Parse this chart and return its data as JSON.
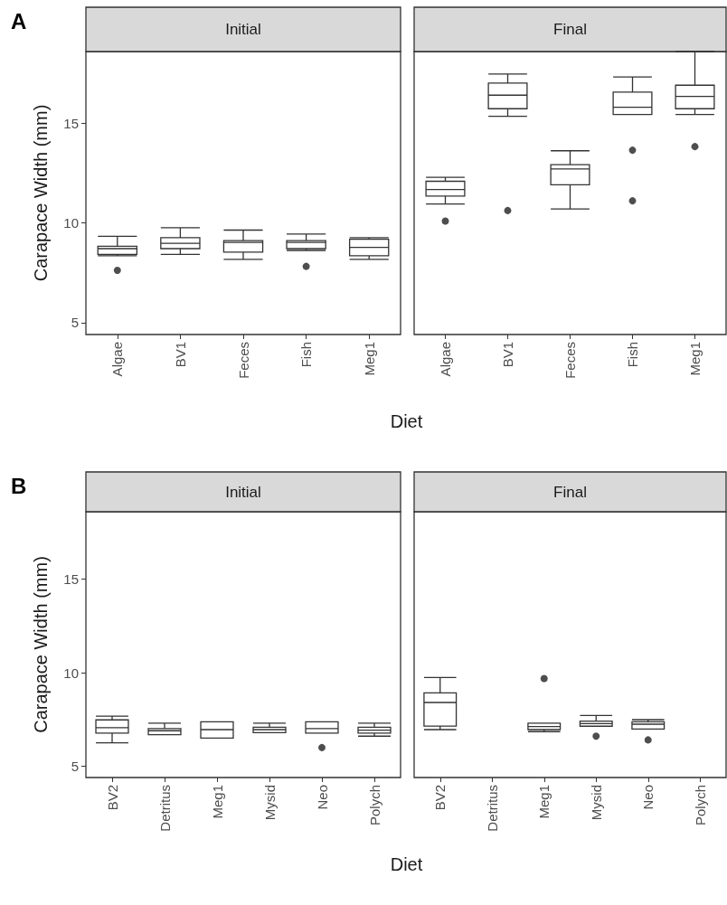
{
  "chart_data": [
    {
      "type": "box",
      "title": "Initial",
      "annotations": [
        "A"
      ],
      "xlabel": "Diet",
      "ylabel": "Carapace Width (mm)",
      "categories": [
        "Algae",
        "BV1",
        "Feces",
        "Fish",
        "Meg1"
      ],
      "ylim": [
        4.4,
        18.6
      ],
      "yticks": [
        5,
        10,
        15
      ],
      "boxes": [
        {
          "low": 8.35,
          "q1": 8.42,
          "median": 8.71,
          "q3": 8.83,
          "high": 9.33,
          "outliers": [
            7.62
          ]
        },
        {
          "low": 8.42,
          "q1": 8.71,
          "median": 8.98,
          "q3": 9.26,
          "high": 9.76
        },
        {
          "low": 8.17,
          "q1": 8.53,
          "median": 9.02,
          "q3": 9.11,
          "high": 9.64
        },
        {
          "low": 8.62,
          "q1": 8.71,
          "median": 9.02,
          "q3": 9.11,
          "high": 9.44,
          "outliers": [
            7.82
          ]
        },
        {
          "low": 8.17,
          "q1": 8.35,
          "median": 8.77,
          "q3": 9.18,
          "high": 9.26
        }
      ]
    },
    {
      "type": "box",
      "title": "Final",
      "categories": [
        "Algae",
        "BV1",
        "Feces",
        "Fish",
        "Meg1"
      ],
      "ylim": [
        4.4,
        18.6
      ],
      "yticks": [
        5,
        10,
        15
      ],
      "tick_labels": "x",
      "boxes": [
        {
          "low": 10.95,
          "q1": 11.35,
          "median": 11.68,
          "q3": 12.09,
          "high": 12.29,
          "outliers": [
            10.09
          ]
        },
        {
          "low": 15.35,
          "q1": 15.73,
          "median": 16.41,
          "q3": 17.02,
          "high": 17.47,
          "outliers": [
            10.62
          ]
        },
        {
          "low": 10.7,
          "q1": 11.91,
          "median": 12.71,
          "q3": 12.92,
          "high": 13.62
        },
        {
          "low": 15.44,
          "q1": 15.44,
          "median": 15.8,
          "q3": 16.56,
          "high": 17.32,
          "outliers": [
            13.65,
            11.11
          ]
        },
        {
          "low": 15.44,
          "q1": 15.73,
          "median": 16.35,
          "q3": 16.91,
          "high": 18.6,
          "outliers": [
            13.83
          ]
        }
      ]
    },
    {
      "type": "box",
      "title": "Initial",
      "annotations": [
        "B"
      ],
      "xlabel": "Diet",
      "ylabel": "Carapace Width (mm)",
      "categories": [
        "BV2",
        "Detritus",
        "Meg1",
        "Mysid",
        "Neo",
        "Polych"
      ],
      "ylim": [
        4.4,
        18.6
      ],
      "yticks": [
        5,
        10,
        15
      ],
      "boxes": [
        {
          "low": 6.25,
          "q1": 6.77,
          "median": 7.06,
          "q3": 7.48,
          "high": 7.68
        },
        {
          "low": 6.69,
          "q1": 6.69,
          "median": 6.9,
          "q3": 7.01,
          "high": 7.3
        },
        {
          "low": 6.51,
          "q1": 6.51,
          "median": 6.96,
          "q3": 7.38,
          "high": 7.38
        },
        {
          "low": 6.8,
          "q1": 6.8,
          "median": 6.96,
          "q3": 7.09,
          "high": 7.3
        },
        {
          "low": 6.77,
          "q1": 6.77,
          "median": 7.01,
          "q3": 7.38,
          "high": 7.38,
          "outliers": [
            6.0
          ]
        },
        {
          "low": 6.61,
          "q1": 6.77,
          "median": 6.93,
          "q3": 7.09,
          "high": 7.3
        }
      ]
    },
    {
      "type": "box",
      "title": "Final",
      "categories": [
        "BV2",
        "Detritus",
        "Meg1",
        "Mysid",
        "Neo",
        "Polych"
      ],
      "ylim": [
        4.4,
        18.6
      ],
      "yticks": [
        5,
        10,
        15
      ],
      "tick_labels": "x",
      "boxes": [
        {
          "low": 6.96,
          "q1": 7.15,
          "median": 8.41,
          "q3": 8.92,
          "high": 9.74
        },
        null,
        {
          "low": 6.85,
          "q1": 6.96,
          "median": 7.12,
          "q3": 7.3,
          "high": 7.3,
          "outliers": [
            9.69
          ]
        },
        {
          "low": 7.14,
          "q1": 7.14,
          "median": 7.28,
          "q3": 7.41,
          "high": 7.71,
          "outliers": [
            6.61
          ]
        },
        {
          "low": 6.99,
          "q1": 6.99,
          "median": 7.25,
          "q3": 7.38,
          "high": 7.49,
          "outliers": [
            6.41
          ]
        },
        null
      ]
    }
  ]
}
